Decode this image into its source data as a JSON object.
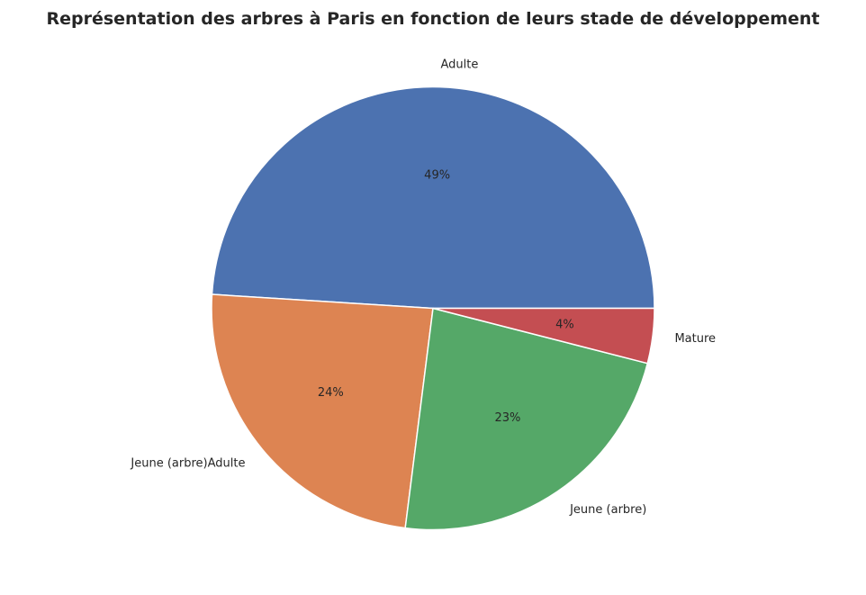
{
  "chart_data": {
    "type": "pie",
    "title": "Représentation des arbres à Paris en fonction de leurs stade de développement",
    "categories": [
      "Adulte",
      "Jeune (arbre)Adulte",
      "Jeune (arbre)",
      "Mature"
    ],
    "values": [
      49.0,
      24.0,
      23.0,
      4.0
    ],
    "value_labels": [
      "49%",
      "24%",
      "23%",
      "4%"
    ],
    "colors": [
      "#4c72b0",
      "#dd8452",
      "#55a868",
      "#c44e52"
    ],
    "start_angle_deg": 0,
    "direction": "counterclockwise",
    "legend": "none"
  }
}
